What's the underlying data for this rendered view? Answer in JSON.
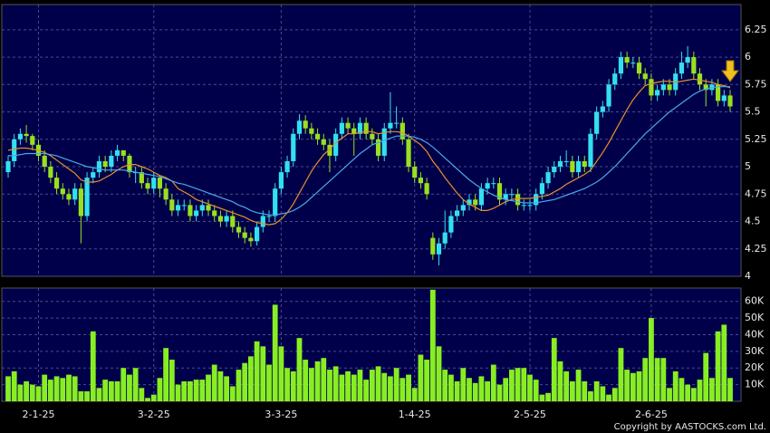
{
  "chart_data": [
    {
      "type": "candlestick",
      "up_color": "#33e0f0",
      "down_color": "#99e020",
      "grid": true,
      "ylim": [
        4,
        6.48
      ],
      "yticks": [
        4,
        4.25,
        4.5,
        4.75,
        5,
        5.25,
        5.5,
        5.75,
        6,
        6.25
      ],
      "open": [
        4.95,
        5.05,
        5.25,
        5.3,
        5.28,
        5.2,
        5.1,
        5.0,
        4.9,
        4.8,
        4.75,
        4.7,
        4.8,
        4.55,
        4.9,
        4.95,
        5.05,
        5.0,
        5.1,
        5.15,
        5.1,
        4.95,
        4.95,
        4.85,
        4.8,
        4.9,
        4.8,
        4.7,
        4.6,
        4.65,
        4.65,
        4.55,
        4.6,
        4.65,
        4.6,
        4.55,
        4.5,
        4.55,
        4.45,
        4.4,
        4.35,
        4.32,
        4.45,
        4.55,
        4.55,
        4.8,
        4.95,
        5.05,
        5.3,
        5.42,
        5.35,
        5.3,
        5.25,
        5.2,
        5.1,
        5.3,
        5.4,
        5.35,
        5.3,
        5.4,
        5.3,
        5.25,
        5.1,
        5.35,
        5.4,
        5.4,
        5.25,
        5.0,
        4.9,
        4.85,
        4.35,
        4.2,
        4.3,
        4.4,
        4.55,
        4.6,
        4.65,
        4.7,
        4.65,
        4.8,
        4.85,
        4.85,
        4.7,
        4.75,
        4.75,
        4.65,
        4.65,
        4.65,
        4.75,
        4.85,
        4.95,
        5.0,
        5.05,
        5.05,
        4.95,
        5.05,
        5.0,
        5.3,
        5.5,
        5.55,
        5.75,
        5.85,
        6.0,
        5.95,
        5.95,
        5.85,
        5.8,
        5.65,
        5.7,
        5.75,
        5.7,
        5.85,
        5.95,
        6.0,
        5.85,
        5.75,
        5.7,
        5.75,
        5.6,
        5.65
      ],
      "high": [
        5.1,
        5.3,
        5.35,
        5.38,
        5.3,
        5.25,
        5.15,
        5.05,
        4.95,
        4.85,
        4.8,
        4.85,
        4.85,
        4.95,
        5.0,
        5.1,
        5.1,
        5.15,
        5.2,
        5.15,
        5.12,
        5.0,
        5.0,
        4.9,
        4.95,
        4.92,
        4.85,
        4.75,
        4.7,
        4.7,
        4.7,
        4.65,
        4.7,
        4.7,
        4.65,
        4.6,
        4.6,
        4.6,
        4.5,
        4.45,
        4.4,
        4.5,
        4.6,
        4.6,
        4.85,
        5.0,
        5.1,
        5.35,
        5.48,
        5.47,
        5.4,
        5.35,
        5.3,
        5.25,
        5.35,
        5.45,
        5.45,
        5.4,
        5.45,
        5.45,
        5.35,
        5.3,
        5.4,
        5.68,
        5.55,
        5.45,
        5.3,
        5.05,
        4.95,
        4.9,
        4.4,
        4.35,
        4.6,
        4.6,
        4.65,
        4.7,
        4.75,
        4.75,
        4.85,
        4.9,
        4.9,
        4.9,
        4.8,
        4.8,
        4.8,
        4.7,
        4.7,
        4.8,
        4.9,
        5.0,
        5.05,
        5.1,
        5.15,
        5.1,
        5.1,
        5.1,
        5.35,
        5.55,
        5.6,
        5.8,
        5.9,
        6.05,
        6.05,
        6.0,
        6.0,
        5.9,
        5.85,
        5.75,
        5.8,
        5.8,
        5.9,
        6.05,
        6.1,
        6.05,
        5.9,
        5.8,
        5.8,
        5.8,
        5.7,
        5.7
      ],
      "low": [
        4.9,
        5.0,
        5.2,
        5.22,
        5.15,
        5.05,
        4.95,
        4.85,
        4.75,
        4.7,
        4.65,
        4.65,
        4.3,
        4.5,
        4.85,
        4.9,
        4.95,
        4.95,
        5.05,
        5.05,
        4.9,
        4.85,
        4.8,
        4.75,
        4.75,
        4.72,
        4.65,
        4.55,
        4.55,
        4.6,
        4.5,
        4.5,
        4.55,
        4.55,
        4.5,
        4.45,
        4.45,
        4.4,
        4.35,
        4.3,
        4.27,
        4.28,
        4.4,
        4.5,
        4.5,
        4.75,
        4.9,
        5.0,
        5.25,
        5.3,
        5.25,
        5.2,
        5.15,
        4.95,
        5.05,
        5.25,
        5.3,
        5.1,
        5.25,
        5.25,
        5.2,
        5.05,
        5.05,
        5.3,
        5.35,
        5.2,
        4.95,
        4.85,
        4.8,
        4.7,
        4.15,
        4.1,
        4.25,
        4.35,
        4.5,
        4.55,
        4.6,
        4.6,
        4.6,
        4.75,
        4.8,
        4.65,
        4.65,
        4.7,
        4.6,
        4.6,
        4.6,
        4.6,
        4.7,
        4.8,
        4.9,
        4.95,
        5.0,
        4.9,
        4.9,
        4.95,
        4.95,
        5.25,
        5.45,
        5.5,
        5.7,
        5.8,
        5.9,
        5.9,
        5.8,
        5.75,
        5.6,
        5.6,
        5.65,
        5.65,
        5.65,
        5.8,
        5.9,
        5.8,
        5.7,
        5.55,
        5.65,
        5.55,
        5.55,
        5.5
      ],
      "close": [
        5.05,
        5.25,
        5.3,
        5.28,
        5.2,
        5.1,
        5.0,
        4.9,
        4.8,
        4.75,
        4.7,
        4.8,
        4.55,
        4.9,
        4.95,
        5.05,
        5.0,
        5.1,
        5.15,
        5.1,
        4.95,
        4.95,
        4.85,
        4.8,
        4.9,
        4.8,
        4.7,
        4.6,
        4.65,
        4.65,
        4.55,
        4.6,
        4.65,
        4.6,
        4.55,
        4.5,
        4.55,
        4.45,
        4.4,
        4.35,
        4.32,
        4.45,
        4.55,
        4.55,
        4.8,
        4.95,
        5.05,
        5.3,
        5.42,
        5.35,
        5.3,
        5.25,
        5.2,
        5.1,
        5.3,
        5.4,
        5.35,
        5.3,
        5.4,
        5.3,
        5.25,
        5.1,
        5.35,
        5.4,
        5.4,
        5.25,
        5.0,
        4.9,
        4.85,
        4.75,
        4.2,
        4.3,
        4.4,
        4.55,
        4.6,
        4.65,
        4.7,
        4.65,
        4.8,
        4.85,
        4.85,
        4.7,
        4.75,
        4.75,
        4.65,
        4.65,
        4.65,
        4.75,
        4.85,
        4.95,
        5.0,
        5.05,
        5.05,
        4.95,
        5.05,
        5.0,
        5.3,
        5.5,
        5.55,
        5.75,
        5.85,
        6.0,
        5.95,
        5.95,
        5.85,
        5.8,
        5.65,
        5.7,
        5.75,
        5.7,
        5.85,
        5.95,
        6.0,
        5.85,
        5.75,
        5.7,
        5.75,
        5.6,
        5.65,
        5.55
      ],
      "series": [
        {
          "color": "#e8902a",
          "values": [
            5.15,
            5.16,
            5.17,
            5.17,
            5.16,
            5.15,
            5.13,
            5.1,
            5.06,
            5.02,
            4.98,
            4.94,
            4.88,
            4.86,
            4.86,
            4.87,
            4.9,
            4.93,
            4.97,
            5.0,
            5.02,
            5.02,
            5.0,
            4.98,
            4.95,
            4.92,
            4.9,
            4.87,
            4.8,
            4.77,
            4.74,
            4.7,
            4.68,
            4.66,
            4.64,
            4.62,
            4.6,
            4.58,
            4.56,
            4.54,
            4.51,
            4.49,
            4.48,
            4.47,
            4.48,
            4.52,
            4.58,
            4.66,
            4.76,
            4.86,
            4.96,
            5.04,
            5.11,
            5.16,
            5.22,
            5.26,
            5.3,
            5.3,
            5.31,
            5.32,
            5.32,
            5.3,
            5.31,
            5.32,
            5.32,
            5.31,
            5.28,
            5.24,
            5.2,
            5.14,
            5.05,
            4.98,
            4.9,
            4.83,
            4.76,
            4.7,
            4.66,
            4.63,
            4.6,
            4.6,
            4.62,
            4.65,
            4.68,
            4.7,
            4.71,
            4.71,
            4.71,
            4.72,
            4.73,
            4.74,
            4.77,
            4.8,
            4.84,
            4.87,
            4.9,
            4.93,
            4.97,
            5.05,
            5.13,
            5.22,
            5.32,
            5.42,
            5.52,
            5.61,
            5.68,
            5.74,
            5.76,
            5.77,
            5.78,
            5.78,
            5.77,
            5.78,
            5.79,
            5.8,
            5.79,
            5.78,
            5.77,
            5.75,
            5.74,
            5.72
          ]
        },
        {
          "color": "#4aa8e8",
          "values": [
            5.1,
            5.1,
            5.11,
            5.12,
            5.12,
            5.12,
            5.12,
            5.11,
            5.1,
            5.08,
            5.06,
            5.04,
            5.02,
            5.0,
            4.99,
            4.98,
            4.97,
            4.97,
            4.97,
            4.97,
            4.96,
            4.95,
            4.94,
            4.93,
            4.92,
            4.91,
            4.89,
            4.87,
            4.85,
            4.84,
            4.82,
            4.8,
            4.78,
            4.76,
            4.74,
            4.72,
            4.7,
            4.68,
            4.65,
            4.63,
            4.6,
            4.58,
            4.57,
            4.56,
            4.56,
            4.57,
            4.58,
            4.6,
            4.63,
            4.67,
            4.72,
            4.77,
            4.82,
            4.87,
            4.92,
            4.97,
            5.02,
            5.07,
            5.12,
            5.16,
            5.2,
            5.22,
            5.24,
            5.26,
            5.28,
            5.28,
            5.28,
            5.27,
            5.25,
            5.22,
            5.18,
            5.13,
            5.08,
            5.03,
            4.98,
            4.93,
            4.88,
            4.84,
            4.8,
            4.77,
            4.74,
            4.72,
            4.7,
            4.69,
            4.68,
            4.67,
            4.67,
            4.67,
            4.68,
            4.69,
            4.7,
            4.72,
            4.74,
            4.76,
            4.78,
            4.8,
            4.83,
            4.86,
            4.9,
            4.95,
            5.0,
            5.06,
            5.12,
            5.18,
            5.24,
            5.3,
            5.35,
            5.4,
            5.45,
            5.5,
            5.54,
            5.58,
            5.62,
            5.66,
            5.69,
            5.71,
            5.72,
            5.73,
            5.73,
            5.73
          ]
        }
      ]
    },
    {
      "type": "bar",
      "color": "#88ee22",
      "grid": true,
      "ylim": [
        0,
        68000
      ],
      "yticks": [
        {
          "value": 10000,
          "label": "10K"
        },
        {
          "value": 20000,
          "label": "20K"
        },
        {
          "value": 30000,
          "label": "30K"
        },
        {
          "value": 40000,
          "label": "40K"
        },
        {
          "value": 50000,
          "label": "50K"
        },
        {
          "value": 60000,
          "label": "60K"
        }
      ],
      "categories": [
        null,
        null,
        null,
        null,
        null,
        "2-1-25",
        null,
        null,
        null,
        null,
        null,
        null,
        null,
        null,
        null,
        null,
        null,
        null,
        null,
        null,
        null,
        null,
        null,
        null,
        "3-2-25",
        null,
        null,
        null,
        null,
        null,
        null,
        null,
        null,
        null,
        null,
        null,
        null,
        null,
        null,
        null,
        null,
        null,
        null,
        null,
        null,
        "3-3-25",
        null,
        null,
        null,
        null,
        null,
        null,
        null,
        null,
        null,
        null,
        null,
        null,
        null,
        null,
        null,
        null,
        null,
        null,
        null,
        null,
        null,
        "1-4-25",
        null,
        null,
        null,
        null,
        null,
        null,
        null,
        null,
        null,
        null,
        null,
        null,
        null,
        null,
        null,
        null,
        null,
        null,
        "2-5-25",
        null,
        null,
        null,
        null,
        null,
        null,
        null,
        null,
        null,
        null,
        null,
        null,
        null,
        null,
        null,
        null,
        null,
        null,
        null,
        "2-6-25",
        null,
        null,
        null,
        null,
        null,
        null,
        null,
        null,
        null,
        null,
        null,
        null,
        null
      ],
      "values": [
        15000,
        18000,
        10000,
        12000,
        10000,
        9000,
        16000,
        13000,
        15000,
        14000,
        16000,
        15000,
        6000,
        6000,
        42000,
        8000,
        13000,
        12000,
        12000,
        20000,
        16000,
        20000,
        8000,
        2000,
        4000,
        14000,
        32000,
        25000,
        10000,
        12000,
        12000,
        13000,
        13000,
        16000,
        22000,
        18000,
        15000,
        9000,
        19000,
        23000,
        27000,
        36000,
        33000,
        22000,
        58000,
        33000,
        20000,
        18000,
        38000,
        25000,
        20000,
        24000,
        26000,
        19000,
        21000,
        16000,
        18000,
        16000,
        19000,
        13000,
        19000,
        21000,
        17000,
        15000,
        20000,
        14000,
        16000,
        8000,
        28000,
        25000,
        67000,
        33000,
        19000,
        16000,
        12000,
        20000,
        14000,
        11000,
        15000,
        12000,
        22000,
        10000,
        14000,
        19000,
        20000,
        20000,
        16000,
        13000,
        4000,
        5000,
        38000,
        24000,
        18000,
        12000,
        19000,
        12000,
        6000,
        12000,
        9000,
        4000,
        8000,
        32000,
        19000,
        17000,
        18000,
        26000,
        50000,
        26000,
        26000,
        8000,
        18000,
        14000,
        10000,
        8000,
        13000,
        29000,
        14000,
        42000,
        46000,
        14000
      ]
    },
    {
      "type": "note",
      "text": "Copyright by AASTOCKS.com Ltd."
    }
  ]
}
